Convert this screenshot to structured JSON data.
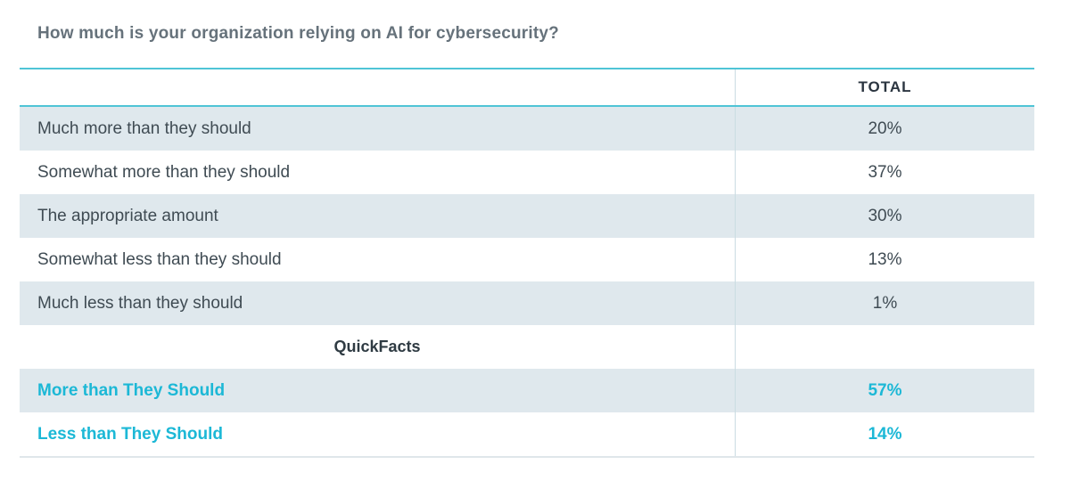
{
  "title": "How much is your organization relying on AI for cybersecurity?",
  "table": {
    "total_header": "TOTAL",
    "rows": [
      {
        "label": "Much more than they should",
        "value": "20%"
      },
      {
        "label": "Somewhat more than they should",
        "value": "37%"
      },
      {
        "label": "The appropriate amount",
        "value": "30%"
      },
      {
        "label": "Somewhat less than they should",
        "value": "13%"
      },
      {
        "label": "Much less than they should",
        "value": "1%"
      }
    ],
    "section_label": "QuickFacts",
    "quickfacts": [
      {
        "label": "More than They Should",
        "value": "57%"
      },
      {
        "label": "Less than They Should",
        "value": "14%"
      }
    ]
  },
  "colors": {
    "accent_cyan_text": "#1cb8d6",
    "rule_cyan": "#4fc4d6",
    "row_shade": "#dfe8ed",
    "column_divider": "#cadce2",
    "bottom_rule": "#dfe6ea",
    "title_text": "#66727b",
    "row_text": "#3f4b53",
    "header_text": "#2b3540"
  },
  "chart_data": {
    "type": "table",
    "title": "How much is your organization relying on AI for cybersecurity?",
    "columns": [
      "",
      "TOTAL"
    ],
    "categories": [
      "Much more than they should",
      "Somewhat more than they should",
      "The appropriate amount",
      "Somewhat less than they should",
      "Much less than they should"
    ],
    "values": [
      20,
      37,
      30,
      13,
      1
    ],
    "quickfacts": {
      "label": "QuickFacts",
      "categories": [
        "More than They Should",
        "Less than They Should"
      ],
      "values": [
        57,
        14
      ]
    }
  }
}
